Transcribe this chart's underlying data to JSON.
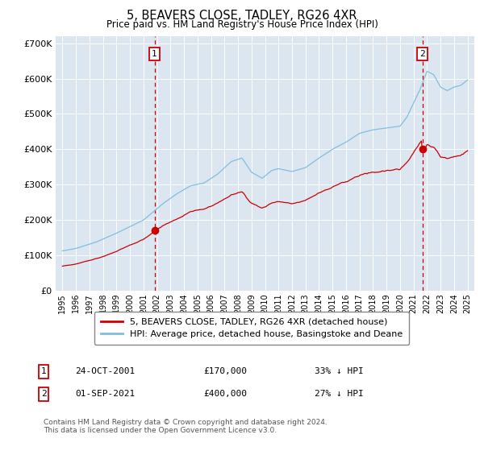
{
  "title": "5, BEAVERS CLOSE, TADLEY, RG26 4XR",
  "subtitle": "Price paid vs. HM Land Registry's House Price Index (HPI)",
  "ylim": [
    0,
    720000
  ],
  "yticks": [
    0,
    100000,
    200000,
    300000,
    400000,
    500000,
    600000,
    700000
  ],
  "ytick_labels": [
    "£0",
    "£100K",
    "£200K",
    "£300K",
    "£400K",
    "£500K",
    "£600K",
    "£700K"
  ],
  "xlim": [
    1994.5,
    2025.5
  ],
  "bg_color": "#dce6f1",
  "grid_color": "#ffffff",
  "hpi_color": "#7fbfdf",
  "price_color": "#cc0000",
  "vline_color": "#cc0000",
  "marker1_x": 2001.82,
  "marker1_y": 170000,
  "marker2_x": 2021.67,
  "marker2_y": 400000,
  "legend_label_red": "5, BEAVERS CLOSE, TADLEY, RG26 4XR (detached house)",
  "legend_label_blue": "HPI: Average price, detached house, Basingstoke and Deane",
  "footnote": "Contains HM Land Registry data © Crown copyright and database right 2024.\nThis data is licensed under the Open Government Licence v3.0.",
  "table_row1_num": "1",
  "table_row1_date": "24-OCT-2001",
  "table_row1_price": "£170,000",
  "table_row1_hpi": "33% ↓ HPI",
  "table_row2_num": "2",
  "table_row2_date": "01-SEP-2021",
  "table_row2_price": "£400,000",
  "table_row2_hpi": "27% ↓ HPI"
}
